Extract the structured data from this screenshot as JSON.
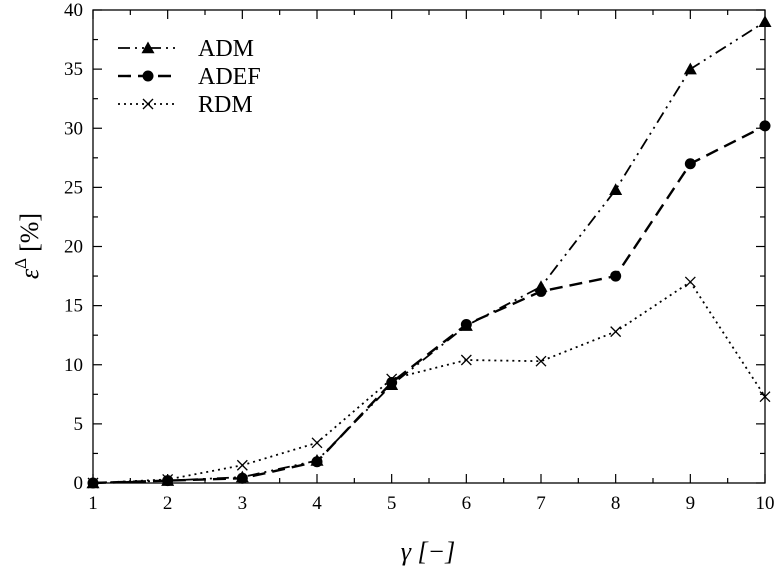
{
  "chart_data": {
    "type": "line",
    "title": "",
    "xlabel": "γ [−]",
    "ylabel": "ε",
    "ylabel_superscript": "Δ",
    "ylabel_unit": "[%]",
    "xlim": [
      1,
      10
    ],
    "ylim": [
      0,
      40
    ],
    "x_ticks": [
      "1",
      "2",
      "3",
      "4",
      "5",
      "6",
      "7",
      "8",
      "9",
      "10"
    ],
    "y_ticks": [
      "0",
      "5",
      "10",
      "15",
      "20",
      "25",
      "30",
      "35",
      "40"
    ],
    "grid": false,
    "legend_position": "top-left",
    "x": [
      1,
      2,
      3,
      4,
      5,
      6,
      7,
      8,
      9,
      10
    ],
    "series": [
      {
        "name": "ADM",
        "values": [
          0.0,
          0.2,
          0.5,
          1.9,
          8.3,
          13.3,
          16.6,
          24.8,
          35.0,
          39.0
        ],
        "marker": "triangle",
        "dash": "dash-dot-dot",
        "color": "#000000"
      },
      {
        "name": "ADEF",
        "values": [
          0.0,
          0.2,
          0.4,
          1.8,
          8.5,
          13.4,
          16.2,
          17.5,
          27.0,
          30.2
        ],
        "marker": "circle",
        "dash": "dashed",
        "color": "#000000"
      },
      {
        "name": "RDM",
        "values": [
          0.0,
          0.3,
          1.5,
          3.4,
          8.8,
          10.4,
          10.3,
          12.8,
          17.0,
          7.3
        ],
        "marker": "cross",
        "dash": "dotted",
        "color": "#000000"
      }
    ]
  }
}
